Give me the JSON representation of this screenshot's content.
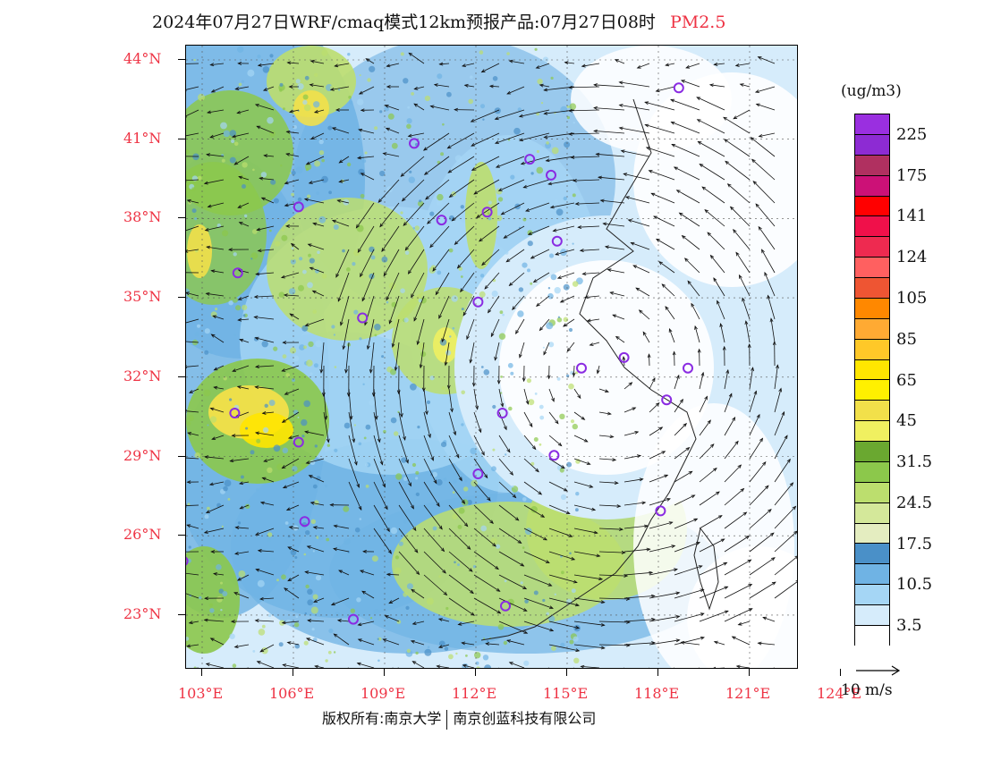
{
  "title": {
    "main": "2024年07月27日WRF/cmaq模式12km预报产品:07月27日08时",
    "pollutant": "PM2.5"
  },
  "map": {
    "lat_labels": [
      "44°N",
      "41°N",
      "38°N",
      "35°N",
      "32°N",
      "29°N",
      "26°N",
      "23°N"
    ],
    "lon_labels": [
      "103°E",
      "106°E",
      "109°E",
      "112°E",
      "115°E",
      "118°E",
      "121°E",
      "124°E"
    ],
    "stations": [
      {
        "lon": 119.0,
        "lat": 42.9
      },
      {
        "lon": 110.3,
        "lat": 40.8
      },
      {
        "lon": 114.1,
        "lat": 40.2
      },
      {
        "lon": 114.8,
        "lat": 39.6
      },
      {
        "lon": 106.5,
        "lat": 38.4
      },
      {
        "lon": 111.2,
        "lat": 37.9
      },
      {
        "lon": 112.7,
        "lat": 38.2
      },
      {
        "lon": 115.0,
        "lat": 37.1
      },
      {
        "lon": 104.5,
        "lat": 35.9
      },
      {
        "lon": 112.4,
        "lat": 34.8
      },
      {
        "lon": 108.6,
        "lat": 34.2
      },
      {
        "lon": 117.2,
        "lat": 32.7
      },
      {
        "lon": 115.8,
        "lat": 32.3
      },
      {
        "lon": 119.3,
        "lat": 32.3
      },
      {
        "lon": 118.6,
        "lat": 31.1
      },
      {
        "lon": 104.4,
        "lat": 30.6
      },
      {
        "lon": 113.2,
        "lat": 30.6
      },
      {
        "lon": 106.5,
        "lat": 29.5
      },
      {
        "lon": 114.9,
        "lat": 29.0
      },
      {
        "lon": 112.4,
        "lat": 28.3
      },
      {
        "lon": 118.4,
        "lat": 26.9
      },
      {
        "lon": 106.7,
        "lat": 26.5
      },
      {
        "lon": 102.7,
        "lat": 25.0
      },
      {
        "lon": 113.3,
        "lat": 23.3
      },
      {
        "lon": 108.3,
        "lat": 22.8
      }
    ],
    "colors": {
      "frame": "#000000",
      "label": "#ee3344",
      "station": "#8a2be2"
    }
  },
  "legend": {
    "unit": "(ug/m3)",
    "bins": [
      {
        "color": "#9a2fe0",
        "label": "225"
      },
      {
        "color": "#8d2bd3",
        "label": ""
      },
      {
        "color": "#b03060",
        "label": "175"
      },
      {
        "color": "#cc1177",
        "label": ""
      },
      {
        "color": "#ff0000",
        "label": "141"
      },
      {
        "color": "#f0104a",
        "label": ""
      },
      {
        "color": "#ee2a50",
        "label": "124"
      },
      {
        "color": "#ff6060",
        "label": ""
      },
      {
        "color": "#ee5533",
        "label": "105"
      },
      {
        "color": "#ff8800",
        "label": ""
      },
      {
        "color": "#ffaa33",
        "label": "85"
      },
      {
        "color": "#ffc828",
        "label": ""
      },
      {
        "color": "#ffe600",
        "label": "65"
      },
      {
        "color": "#fff000",
        "label": ""
      },
      {
        "color": "#f2e04a",
        "label": "45"
      },
      {
        "color": "#f0f060",
        "label": ""
      },
      {
        "color": "#6aa830",
        "label": "31.5"
      },
      {
        "color": "#8cc84b",
        "label": ""
      },
      {
        "color": "#bcde6e",
        "label": "24.5"
      },
      {
        "color": "#d4e89a",
        "label": ""
      },
      {
        "color": "#e4edc0",
        "label": "17.5"
      },
      {
        "color": "#4a90c8",
        "label": ""
      },
      {
        "color": "#6fb3e4",
        "label": "10.5"
      },
      {
        "color": "#a5d6f5",
        "label": ""
      },
      {
        "color": "#d6ecfb",
        "label": "3.5"
      },
      {
        "color": "#ffffff",
        "label": ""
      }
    ],
    "wind_reference": "10 m/s"
  },
  "footer": {
    "copyright_left": "版权所有:南京大学",
    "copyright_right": "南京创蓝科技有限公司"
  }
}
